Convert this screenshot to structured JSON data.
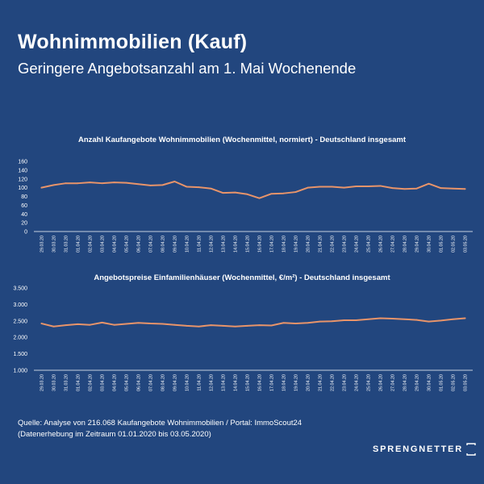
{
  "header": {
    "title": "Wohnimmobilien (Kauf)",
    "subtitle": "Geringere Angebotsanzahl am 1. Mai Wochenende"
  },
  "colors": {
    "background": "#22467e",
    "line": "#e8946a",
    "axis": "#ffffff"
  },
  "chart_data": [
    {
      "type": "line",
      "title": "Anzahl Kaufangebote Wohnimmobilien (Wochenmittel, normiert) - Deutschland insgesamt",
      "xlabel": "",
      "ylabel": "",
      "ylim": [
        0,
        160
      ],
      "yticks": [
        "0",
        "20",
        "40",
        "60",
        "80",
        "100",
        "120",
        "140",
        "160"
      ],
      "grid": false,
      "categories": [
        "29.03.20",
        "30.03.20",
        "31.03.20",
        "01.04.20",
        "02.04.20",
        "03.04.20",
        "04.04.20",
        "05.04.20",
        "06.04.20",
        "07.04.20",
        "08.04.20",
        "09.04.20",
        "10.04.20",
        "11.04.20",
        "12.04.20",
        "13.04.20",
        "14.04.20",
        "15.04.20",
        "16.04.20",
        "17.04.20",
        "18.04.20",
        "19.04.20",
        "20.04.20",
        "21.04.20",
        "22.04.20",
        "23.04.20",
        "24.04.20",
        "25.04.20",
        "26.04.20",
        "27.04.20",
        "28.04.20",
        "29.04.20",
        "30.04.20",
        "01.05.20",
        "02.05.20",
        "03.05.20"
      ],
      "series": [
        {
          "values": [
            100,
            106,
            110,
            110,
            112,
            110,
            112,
            111,
            108,
            105,
            106,
            114,
            102,
            101,
            98,
            88,
            89,
            85,
            76,
            86,
            87,
            90,
            100,
            102,
            102,
            100,
            103,
            103,
            104,
            99,
            97,
            98,
            109,
            99,
            98,
            97
          ]
        }
      ]
    },
    {
      "type": "line",
      "title": "Angebotspreise Einfamilienhäuser (Wochenmittel, €/m²) - Deutschland insgesamt",
      "xlabel": "",
      "ylabel": "",
      "ylim": [
        1000,
        3500
      ],
      "yticks": [
        "1.000",
        "1.500",
        "2.000",
        "2.500",
        "3.000",
        "3.500"
      ],
      "grid": false,
      "categories": [
        "29.03.20",
        "30.03.20",
        "31.03.20",
        "01.04.20",
        "02.04.20",
        "03.04.20",
        "04.04.20",
        "05.04.20",
        "06.04.20",
        "07.04.20",
        "08.04.20",
        "09.04.20",
        "10.04.20",
        "11.04.20",
        "12.04.20",
        "13.04.20",
        "14.04.20",
        "15.04.20",
        "16.04.20",
        "17.04.20",
        "18.04.20",
        "19.04.20",
        "20.04.20",
        "21.04.20",
        "22.04.20",
        "23.04.20",
        "24.04.20",
        "25.04.20",
        "26.04.20",
        "27.04.20",
        "28.04.20",
        "29.04.20",
        "30.04.20",
        "01.05.20",
        "02.05.20",
        "03.05.20"
      ],
      "series": [
        {
          "values": [
            2420,
            2330,
            2370,
            2400,
            2380,
            2450,
            2380,
            2410,
            2440,
            2420,
            2410,
            2380,
            2350,
            2330,
            2370,
            2350,
            2330,
            2350,
            2370,
            2360,
            2440,
            2420,
            2440,
            2480,
            2490,
            2520,
            2520,
            2550,
            2580,
            2570,
            2550,
            2530,
            2480,
            2510,
            2550,
            2580
          ]
        }
      ]
    }
  ],
  "footer": {
    "source_line1": "Quelle: Analyse von 216.068 Kaufangebote Wohnimmobilien / Portal: ImmoScout24",
    "source_line2": "(Datenerhebung im Zeitraum 01.01.2020 bis 03.05.2020)",
    "brand": "SPRENGNETTER"
  }
}
